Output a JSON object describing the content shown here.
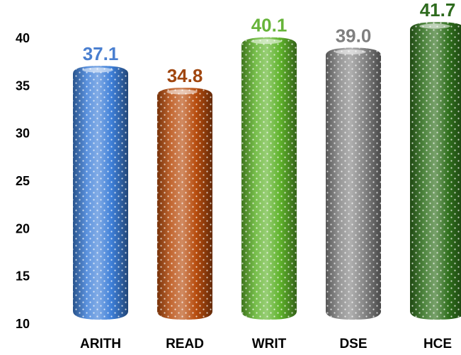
{
  "chart_data": {
    "type": "bar",
    "categories": [
      "ARITH",
      "READ",
      "WRIT",
      "DSE",
      "HCE"
    ],
    "values": [
      37.1,
      34.8,
      40.1,
      39.0,
      41.7
    ],
    "value_labels": [
      "37.1",
      "34.8",
      "40.1",
      "39.0",
      "41.7"
    ],
    "ylim": [
      10,
      42
    ],
    "yticks": [
      10,
      15,
      20,
      25,
      30,
      35,
      40
    ],
    "grid": false,
    "colors": [
      "#3e7fd8",
      "#b84d0e",
      "#5fb32b",
      "#858585",
      "#2f6f1c"
    ],
    "label_colors": [
      "#4a7fd0",
      "#a0460f",
      "#67b43a",
      "#7f7f7f",
      "#2e6b1e"
    ],
    "bar_style": "rounded cylinder with white dot pattern"
  }
}
